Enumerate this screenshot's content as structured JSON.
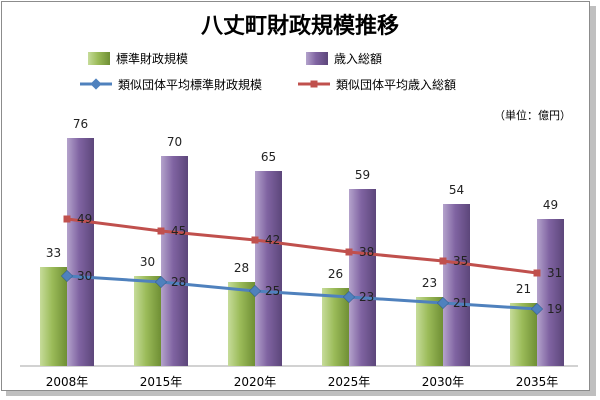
{
  "chart_data": {
    "type": "bar",
    "title": "八丈町財政規模推移",
    "unit": "（単位：億円）",
    "categories": [
      "2008年",
      "2015年",
      "2020年",
      "2025年",
      "2030年",
      "2035年"
    ],
    "series": [
      {
        "name": "標準財政規模",
        "kind": "bar",
        "color": "#9bbb59",
        "values": [
          33,
          30,
          28,
          26,
          23,
          21
        ]
      },
      {
        "name": "歳入総額",
        "kind": "bar",
        "color": "#8064a2",
        "values": [
          76,
          70,
          65,
          59,
          54,
          49
        ]
      },
      {
        "name": "類似団体平均標準財政規模",
        "kind": "line",
        "color": "#4f81bd",
        "values": [
          30,
          28,
          25,
          23,
          21,
          19
        ]
      },
      {
        "name": "類似団体平均歳入総額",
        "kind": "line",
        "color": "#c0504d",
        "values": [
          49,
          45,
          42,
          38,
          35,
          31
        ]
      }
    ],
    "ylim": [
      0,
      90
    ],
    "grid": false,
    "legend": "top"
  }
}
